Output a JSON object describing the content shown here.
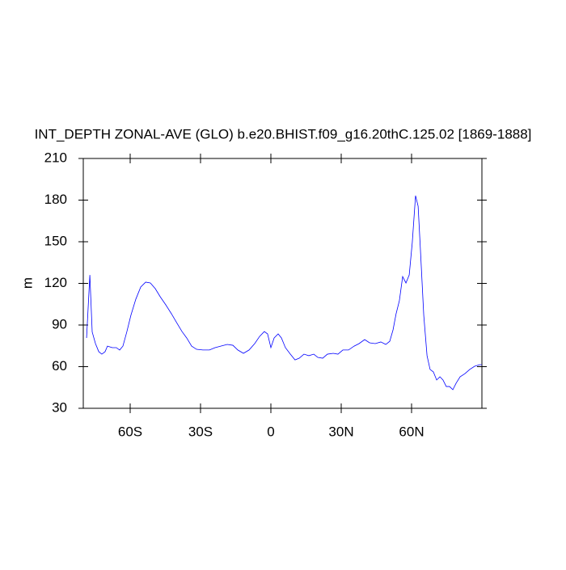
{
  "chart_data": {
    "type": "line",
    "title": "INT_DEPTH ZONAL-AVE (GLO) b.e20.BHIST.f09_g16.20thC.125.02 [1869-1888]",
    "y_label": "m",
    "x": [
      -78.6,
      -77.2,
      -76.2,
      -74.8,
      -73.4,
      -72.1,
      -70.7,
      -69.7,
      -67.6,
      -65.9,
      -64.5,
      -63.1,
      -61.4,
      -59.7,
      -57.6,
      -55.5,
      -53.4,
      -51.4,
      -49.3,
      -47.2,
      -44.8,
      -42.4,
      -40,
      -37.9,
      -35.9,
      -33.8,
      -31.7,
      -29,
      -26.2,
      -23.8,
      -21.4,
      -18.6,
      -16.2,
      -14.1,
      -11.7,
      -9.3,
      -6.9,
      -4.8,
      -2.8,
      -1.4,
      0,
      1.4,
      3.1,
      4.5,
      6.2,
      8.3,
      10.3,
      12.1,
      14.1,
      16.2,
      18.3,
      20,
      22.1,
      24.1,
      26.6,
      28.6,
      30.7,
      33.1,
      35.5,
      37.6,
      40,
      42.1,
      44.5,
      46.9,
      49,
      50.7,
      52.1,
      53.4,
      54.8,
      56.2,
      57.6,
      59,
      60.3,
      61.7,
      62.8,
      63.8,
      65.2,
      66.6,
      67.9,
      69.3,
      70.7,
      72.1,
      73.4,
      74.8,
      76.2,
      77.6,
      79,
      80.7,
      82.8,
      84.8,
      86.9,
      89,
      90
    ],
    "series": [
      {
        "name": "INT_DEPTH",
        "color": "#0000ff",
        "values": [
          80.7,
          126,
          85,
          76.6,
          70.8,
          69,
          70.8,
          74.8,
          73.7,
          73.7,
          72,
          74.8,
          85.3,
          97,
          108.6,
          117.4,
          120.9,
          120.3,
          116.2,
          110.4,
          104.5,
          98.1,
          91.2,
          85.3,
          80.7,
          74.8,
          72.5,
          72,
          72,
          73.7,
          74.8,
          76,
          75.4,
          72,
          69.6,
          72,
          76.6,
          81.8,
          85.3,
          83.6,
          73.7,
          80.7,
          83.6,
          80.7,
          73.7,
          69,
          64.9,
          66.1,
          69,
          67.9,
          69,
          66.7,
          66.1,
          69,
          69.6,
          69,
          72,
          72,
          74.8,
          76.6,
          79.5,
          77.2,
          76.6,
          77.8,
          76,
          78.3,
          86.5,
          98.1,
          107.5,
          124.9,
          120.3,
          126,
          149.4,
          183.2,
          175.6,
          143.6,
          97,
          67.9,
          58,
          56.2,
          50.4,
          52.7,
          50.4,
          45.7,
          45.7,
          43.4,
          48.1,
          52.7,
          55,
          58,
          60.3,
          61.4,
          61.4
        ]
      }
    ],
    "xlim": [
      -80,
      90
    ],
    "xticks": [
      {
        "value": -60,
        "label": "60S"
      },
      {
        "value": -30,
        "label": "30S"
      },
      0,
      {
        "value": 30,
        "label": "30N"
      },
      {
        "value": 60,
        "label": "60N"
      }
    ],
    "ylim": [
      30,
      210
    ],
    "yticks": [
      30,
      60,
      90,
      120,
      150,
      180,
      210
    ]
  }
}
